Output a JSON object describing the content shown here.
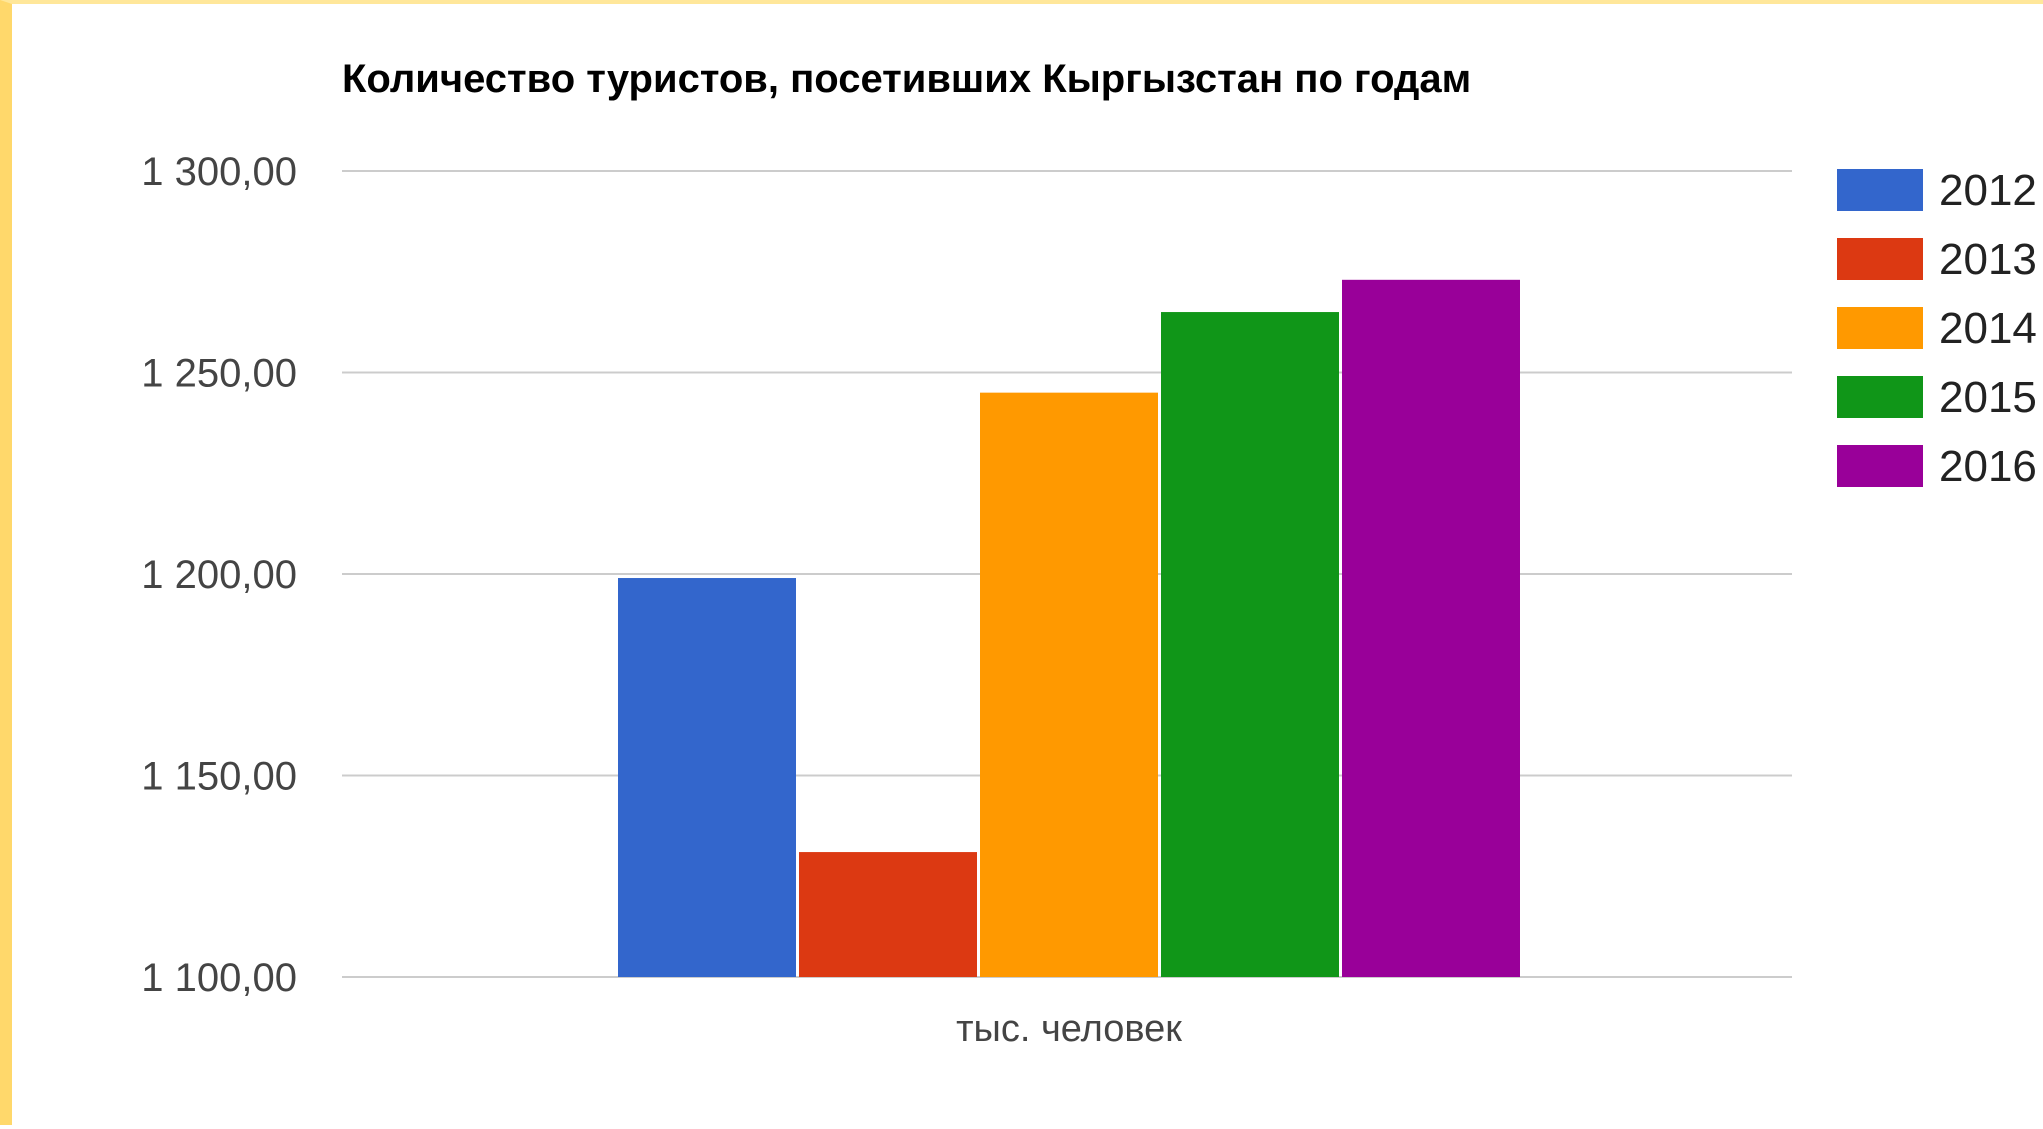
{
  "chart_data": {
    "type": "bar",
    "title": "Количество туристов, посетивших Кыргызстан по годам",
    "categories": [
      "тыс. человек"
    ],
    "series": [
      {
        "name": "2012",
        "values": [
          1199
        ],
        "color": "#3366cc"
      },
      {
        "name": "2013",
        "values": [
          1131
        ],
        "color": "#dc3912"
      },
      {
        "name": "2014",
        "values": [
          1245
        ],
        "color": "#ff9900"
      },
      {
        "name": "2015",
        "values": [
          1265
        ],
        "color": "#109618"
      },
      {
        "name": "2016",
        "values": [
          1273
        ],
        "color": "#990099"
      }
    ],
    "ylim": [
      1100,
      1300
    ],
    "yticks": [
      1100,
      1150,
      1200,
      1250,
      1300
    ],
    "ytick_labels": [
      "1 100,00",
      "1 150,00",
      "1 200,00",
      "1 250,00",
      "1 300,00"
    ],
    "grid": true,
    "legend": "right"
  }
}
